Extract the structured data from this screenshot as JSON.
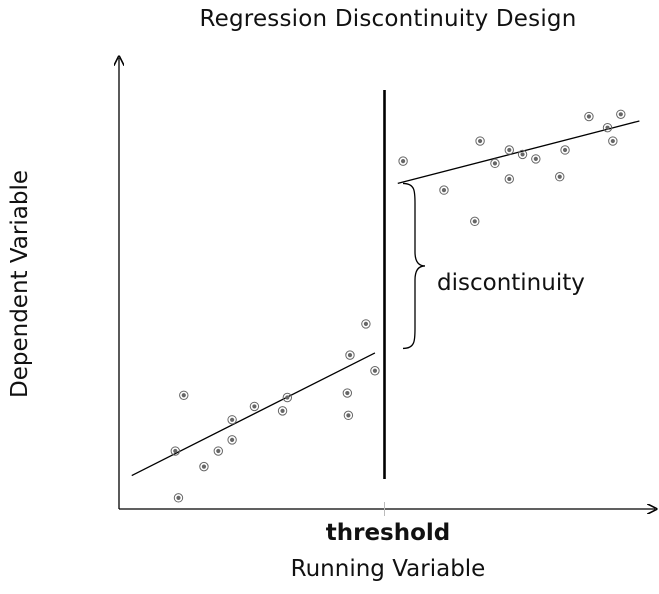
{
  "chart_data": {
    "type": "scatter",
    "title": "Regression Discontinuity Design",
    "xlabel": "Running Variable",
    "ylabel": "Dependent Variable",
    "threshold_label": "threshold",
    "annotation": "discontinuity",
    "xlim": [
      0,
      10
    ],
    "ylim": [
      0,
      10
    ],
    "threshold": 5.0,
    "grid": false,
    "marker_color": "#666666",
    "line_color": "#000000",
    "series": [
      {
        "side": "left",
        "points": [
          {
            "x": 1.12,
            "y": 0.25
          },
          {
            "x": 1.06,
            "y": 1.3
          },
          {
            "x": 1.22,
            "y": 2.55
          },
          {
            "x": 1.6,
            "y": 0.95
          },
          {
            "x": 1.87,
            "y": 1.3
          },
          {
            "x": 2.13,
            "y": 1.55
          },
          {
            "x": 2.13,
            "y": 2.0
          },
          {
            "x": 2.55,
            "y": 2.3
          },
          {
            "x": 3.08,
            "y": 2.2
          },
          {
            "x": 3.17,
            "y": 2.5
          },
          {
            "x": 4.3,
            "y": 2.6
          },
          {
            "x": 4.32,
            "y": 2.1
          },
          {
            "x": 4.35,
            "y": 3.45
          },
          {
            "x": 4.65,
            "y": 4.15
          },
          {
            "x": 4.82,
            "y": 3.1
          }
        ],
        "fit": {
          "x": [
            0.24,
            4.82
          ],
          "y": [
            0.75,
            3.5
          ]
        }
      },
      {
        "side": "right",
        "points": [
          {
            "x": 5.35,
            "y": 7.8
          },
          {
            "x": 6.12,
            "y": 7.15
          },
          {
            "x": 6.7,
            "y": 6.45
          },
          {
            "x": 6.8,
            "y": 8.25
          },
          {
            "x": 7.08,
            "y": 7.75
          },
          {
            "x": 7.35,
            "y": 8.05
          },
          {
            "x": 7.35,
            "y": 7.4
          },
          {
            "x": 7.6,
            "y": 7.95
          },
          {
            "x": 7.85,
            "y": 7.85
          },
          {
            "x": 8.3,
            "y": 7.45
          },
          {
            "x": 8.4,
            "y": 8.05
          },
          {
            "x": 8.85,
            "y": 8.8
          },
          {
            "x": 9.2,
            "y": 8.55
          },
          {
            "x": 9.3,
            "y": 8.25
          },
          {
            "x": 9.45,
            "y": 8.85
          }
        ],
        "fit": {
          "x": [
            5.25,
            9.8
          ],
          "y": [
            7.3,
            8.7
          ]
        }
      }
    ],
    "discontinuity_range": [
      3.6,
      7.3
    ]
  }
}
